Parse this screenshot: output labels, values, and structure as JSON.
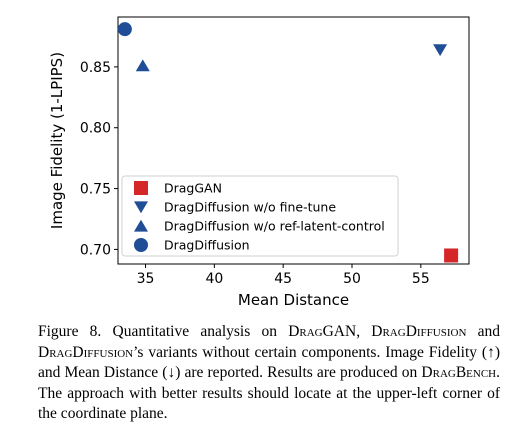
{
  "chart_data": {
    "type": "scatter",
    "xlabel": "Mean Distance",
    "ylabel": "Image Fidelity (1-LPIPS)",
    "xlim": [
      33,
      58.5
    ],
    "ylim": [
      0.688,
      0.891
    ],
    "xticks": [
      35,
      40,
      45,
      50,
      55
    ],
    "yticks": [
      0.7,
      0.75,
      0.8,
      0.85
    ],
    "xtick_labels": [
      "35",
      "40",
      "45",
      "50",
      "55"
    ],
    "ytick_labels": [
      "0.70",
      "0.75",
      "0.80",
      "0.85"
    ],
    "grid": false,
    "legend_position": "lower-left",
    "series": [
      {
        "name": "DragGAN",
        "marker": "square",
        "color": "#d62728",
        "x": [
          57.2
        ],
        "y": [
          0.695
        ]
      },
      {
        "name": "DragDiffusion w/o fine-tune",
        "marker": "triangle-down",
        "color": "#1f4e96",
        "x": [
          56.4
        ],
        "y": [
          0.864
        ]
      },
      {
        "name": "DragDiffusion w/o ref-latent-control",
        "marker": "triangle-up",
        "color": "#1f4e96",
        "x": [
          34.8
        ],
        "y": [
          0.851
        ]
      },
      {
        "name": "DragDiffusion",
        "marker": "circle",
        "color": "#1f4e96",
        "x": [
          33.5
        ],
        "y": [
          0.881
        ]
      }
    ]
  },
  "caption": {
    "p1": "Figure 8. Quantitative analysis on ",
    "draggan": "DragGAN",
    "p2": ", ",
    "dragdiffusion1": "DragDiffusion",
    "p3": " and ",
    "dragdiffusion2": "DragDiffusion",
    "p4": "’s variants without certain components. Image Fidelity (↑) and Mean Distance (↓) are reported. Results are produced on ",
    "dragbench": "DragBench",
    "p5": ". The approach with better results should locate at the upper-left corner of the coordinate plane."
  }
}
